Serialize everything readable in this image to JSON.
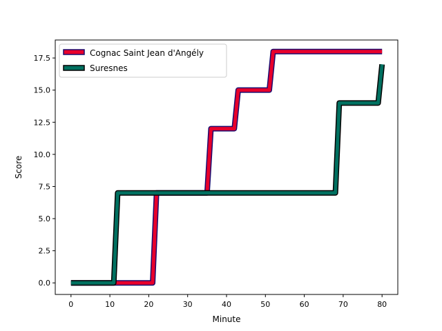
{
  "chart_data": {
    "type": "line",
    "title": "",
    "xlabel": "Minute",
    "ylabel": "Score",
    "xlim": [
      -4.05,
      84.05
    ],
    "ylim": [
      -0.9,
      18.9
    ],
    "xticks": [
      0,
      10,
      20,
      30,
      40,
      50,
      60,
      70,
      80
    ],
    "yticks": [
      0.0,
      2.5,
      5.0,
      7.5,
      10.0,
      12.5,
      15.0,
      17.5
    ],
    "ytick_labels": [
      "0.0",
      "2.5",
      "5.0",
      "7.5",
      "10.0",
      "12.5",
      "15.0",
      "17.5"
    ],
    "legend_position": "upper-left",
    "grid": false,
    "series": [
      {
        "name": "Cognac Saint Jean d'Angély",
        "color": "#e8002b",
        "edge_color": "#1a0a6e",
        "points": [
          [
            0,
            0
          ],
          [
            21,
            0
          ],
          [
            22,
            7
          ],
          [
            35,
            7
          ],
          [
            36,
            12
          ],
          [
            42,
            12
          ],
          [
            43,
            15
          ],
          [
            51,
            15
          ],
          [
            52,
            18
          ],
          [
            80,
            18
          ]
        ]
      },
      {
        "name": "Suresnes",
        "color": "#007060",
        "edge_color": "#000000",
        "points": [
          [
            0,
            0
          ],
          [
            11,
            0
          ],
          [
            12,
            7
          ],
          [
            68,
            7
          ],
          [
            69,
            14
          ],
          [
            79,
            14
          ],
          [
            80,
            17
          ]
        ]
      }
    ]
  }
}
